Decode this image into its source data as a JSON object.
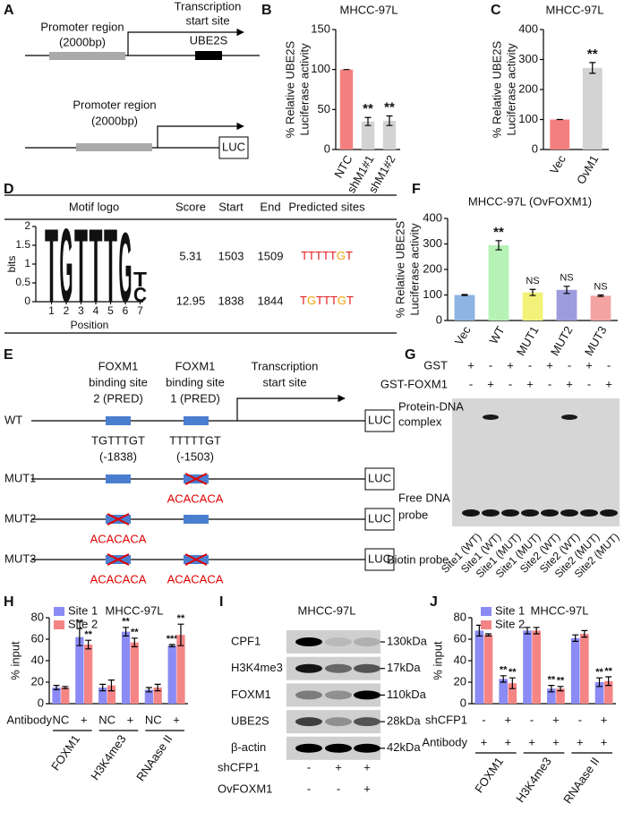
{
  "panel_labels": [
    "A",
    "B",
    "C",
    "D",
    "E",
    "F",
    "G",
    "H",
    "I",
    "J"
  ],
  "panel_a": {
    "gene_promoter": [
      "Promoter region",
      "(2000bp)"
    ],
    "tss": [
      "Transcription",
      "start site"
    ],
    "gene": "UBE2S",
    "reporter_promoter": [
      "Promoter region",
      "(2000bp)"
    ],
    "reporter": "LUC"
  },
  "panel_d": {
    "table": {
      "headers": [
        "Motif logo",
        "Score",
        "Start",
        "End",
        "Predicted sites"
      ],
      "rows": [
        [
          "5.31",
          "1503",
          "1509",
          "TTTTTGT"
        ],
        [
          "12.95",
          "1838",
          "1844",
          "TGTTTGT"
        ]
      ]
    },
    "logo": {
      "ylabel": "bits",
      "xlabel": "Position",
      "ylim": [
        0,
        2
      ],
      "yticks": [
        0,
        0.5,
        1,
        1.5,
        2
      ],
      "xticks": [
        1,
        2,
        3,
        4,
        5,
        6,
        7
      ],
      "letter_colors": {
        "T": "#d40000",
        "G": "#e8a400",
        "C": "#2020c8"
      },
      "letters": [
        {
          "position": 1,
          "stack": [
            {
              "letter": "T",
              "height": 2
            }
          ]
        },
        {
          "position": 2,
          "stack": [
            {
              "letter": "G",
              "height": 2
            }
          ]
        },
        {
          "position": 3,
          "stack": [
            {
              "letter": "T",
              "height": 2
            }
          ]
        },
        {
          "position": 4,
          "stack": [
            {
              "letter": "T",
              "height": 2
            }
          ]
        },
        {
          "position": 5,
          "stack": [
            {
              "letter": "T",
              "height": 2
            }
          ]
        },
        {
          "position": 6,
          "stack": [
            {
              "letter": "G",
              "height": 1.9
            }
          ]
        },
        {
          "position": 7,
          "stack": [
            {
              "letter": "C",
              "height": 0.4
            },
            {
              "letter": "T",
              "height": 0.4
            }
          ]
        }
      ]
    }
  },
  "panel_e": {
    "site2_label": [
      "FOXM1",
      "binding site",
      "2 (PRED)"
    ],
    "site1_label": [
      "FOXM1",
      "binding site",
      "1 (PRED)"
    ],
    "tss": [
      "Transcription",
      "start site"
    ],
    "wt": {
      "site2_seq": "TGTTTGT",
      "site2_pos": "(-1838)",
      "site1_seq": "TTTTTGT",
      "site1_pos": "(-1503)"
    },
    "reporter": "LUC",
    "constructs": [
      {
        "name": "WT"
      },
      {
        "name": "MUT1",
        "site1_mutation": "ACACACA"
      },
      {
        "name": "MUT2",
        "site2_mutation": "ACACACA"
      },
      {
        "name": "MUT3",
        "site2_mutation": "ACACACA",
        "site1_mutation": "ACACACA"
      }
    ]
  },
  "panel_g": {
    "rows": [
      {
        "label": "GST",
        "values": [
          "+",
          "-",
          "+",
          "-",
          "+",
          "-",
          "+",
          "-"
        ]
      },
      {
        "label": "GST-FOXM1",
        "values": [
          "-",
          "+",
          "-",
          "+",
          "-",
          "+",
          "-",
          "+"
        ]
      }
    ],
    "complex_label": [
      "Protein-DNA",
      "complex"
    ],
    "free_label": [
      "Free DNA",
      "probe"
    ],
    "lanes_label": "Biotin probe",
    "lanes": [
      "Site1 (WT)",
      "Site1 (WT)",
      "Site1 (MUT)",
      "Site1 (MUT)",
      "Site2 (WT)",
      "Site2 (WT)",
      "Site2 (MUT)",
      "Site2 (MUT)"
    ]
  },
  "panel_i": {
    "title": "MHCC-97L",
    "blots": [
      {
        "label": "CPF1",
        "size": "130kDa"
      },
      {
        "label": "H3K4me3",
        "size": "17kDa"
      },
      {
        "label": "FOXM1",
        "size": "110kDa"
      },
      {
        "label": "UBE2S",
        "size": "28kDa"
      },
      {
        "label": "β-actin",
        "size": "42kDa"
      }
    ],
    "rows": [
      {
        "label": "shCFP1",
        "values": [
          "-",
          "+",
          "+"
        ]
      },
      {
        "label": "OvFOXM1",
        "values": [
          "-",
          "-",
          "+"
        ]
      }
    ]
  },
  "chart_data": [
    {
      "type": "bar",
      "title": "MHCC-97L",
      "ylabel": [
        "% Relative UBE2S",
        "Luciferase activity"
      ],
      "categories": [
        "NTC",
        "shM1#1",
        "shM1#2"
      ],
      "values": [
        100,
        35,
        36
      ],
      "errors": [
        0,
        5,
        6
      ],
      "annotations": [
        null,
        "**",
        "**"
      ],
      "colors": [
        "#f47f7f",
        "#d3d3d3",
        "#d3d3d3"
      ],
      "ylim": [
        0,
        150
      ],
      "yticks": [
        0,
        50,
        100,
        150
      ]
    },
    {
      "type": "bar",
      "title": "MHCC-97L",
      "ylabel": [
        "% Relative UBE2S",
        "Luciferase activity"
      ],
      "categories": [
        "Vec",
        "OvM1"
      ],
      "values": [
        100,
        272
      ],
      "errors": [
        0,
        18
      ],
      "annotations": [
        null,
        "**"
      ],
      "colors": [
        "#f47f7f",
        "#d3d3d3"
      ],
      "ylim": [
        0,
        400
      ],
      "yticks": [
        0,
        100,
        200,
        300,
        400
      ]
    },
    {
      "type": "bar",
      "title": "MHCC-97L (OvFOXM1)",
      "ylabel": [
        "% Relative UBE2S",
        "Luciferase activity"
      ],
      "categories": [
        "Vec",
        "WT",
        "MUT1",
        "MUT2",
        "MUT3"
      ],
      "values": [
        100,
        295,
        110,
        120,
        97
      ],
      "errors": [
        2,
        18,
        12,
        14,
        3
      ],
      "annotations": [
        null,
        "**",
        "NS",
        "NS",
        "NS"
      ],
      "colors": [
        "#8eb4e3",
        "#b6f2b6",
        "#f2f27a",
        "#9c9cde",
        "#f4a3a3"
      ],
      "ylim": [
        0,
        400
      ],
      "yticks": [
        0,
        100,
        200,
        300,
        400
      ]
    },
    {
      "type": "grouped_bar",
      "title": "MHCC-97L",
      "ylabel": [
        "% input"
      ],
      "row_label": "Antibody",
      "categories": [
        "NC",
        "+",
        "NC",
        "+",
        "NC",
        "+"
      ],
      "groups": [
        "FOXM1",
        "H3K4me3",
        "RNAase II"
      ],
      "series": [
        {
          "name": "Site 1",
          "color": "#8b8bf5",
          "values": [
            15,
            62,
            15,
            67,
            13,
            54
          ],
          "errors": [
            2,
            8,
            3,
            4,
            2,
            1
          ],
          "annotations": [
            null,
            "**",
            null,
            "**",
            null,
            "***"
          ]
        },
        {
          "name": "Site 2",
          "color": "#f58585",
          "values": [
            15,
            55,
            17,
            57,
            15,
            64
          ],
          "errors": [
            1,
            4,
            5,
            4,
            3,
            10
          ],
          "annotations": [
            null,
            "**",
            null,
            "**",
            null,
            "**"
          ]
        }
      ],
      "ylim": [
        0,
        80
      ],
      "yticks": [
        0,
        20,
        40,
        60,
        80
      ]
    },
    {
      "type": "grouped_bar",
      "title": "MHCC-97L",
      "ylabel": [
        "% input"
      ],
      "row_label": "shCFP1",
      "categories": [
        "-",
        "+",
        "-",
        "+",
        "-",
        "+"
      ],
      "extra_rows": [
        {
          "label": "Antibody",
          "values": [
            "+",
            "+",
            "+",
            "+",
            "+",
            "+"
          ]
        }
      ],
      "groups": [
        "FOXM1",
        "H3K4me3",
        "RNAase II"
      ],
      "series": [
        {
          "name": "Site 1",
          "color": "#8b8bf5",
          "values": [
            68,
            23,
            68,
            14,
            61,
            20
          ],
          "errors": [
            5,
            3,
            3,
            3,
            3,
            4
          ],
          "annotations": [
            null,
            "**",
            null,
            "**",
            null,
            "**"
          ]
        },
        {
          "name": "Site 2",
          "color": "#f58585",
          "values": [
            64,
            19,
            68,
            14,
            65,
            21
          ],
          "errors": [
            1,
            5,
            3,
            2,
            3,
            4
          ],
          "annotations": [
            null,
            "**",
            null,
            "**",
            null,
            "**"
          ]
        }
      ],
      "ylim": [
        0,
        80
      ],
      "yticks": [
        0,
        20,
        40,
        60,
        80
      ]
    }
  ]
}
